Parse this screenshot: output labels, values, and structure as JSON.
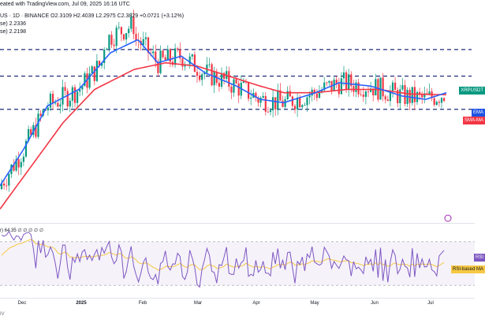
{
  "header": {
    "line1": "eated with TradingView.com, Jul 09, 2025 16:16 UTC",
    "line2": "US · 1D · BINANCE  O2.3109 H2.4039 L2.2975 C2.3829 +0.0721 (+3.12%)",
    "line3": "se) 2.2336",
    "line4": "se) 2.2198"
  },
  "price_labels": [
    {
      "text": "XRPUSDT",
      "color": "#089981"
    },
    {
      "text": "EMA",
      "color": "#1e53e5"
    },
    {
      "text": "SMA-MA",
      "color": "#f23645"
    }
  ],
  "rsi_title": "r) 64.35 ∅ ∅ ∅ ∅ ∅",
  "rsi_labels": [
    {
      "text": "RSI",
      "color": "#7e57c2"
    },
    {
      "text": "RSI-based MA",
      "color": "#f7c843"
    }
  ],
  "xaxis": [
    "Dec",
    "2025",
    "Feb",
    "Mar",
    "Apr",
    "May",
    "Jun",
    "Jul"
  ],
  "footer": "IV",
  "colors": {
    "up": "#089981",
    "down": "#f23645",
    "ema": "#2962ff",
    "sma": "#f23645",
    "rsi": "#7e57c2",
    "rsi_ma": "#f7c843",
    "level": "#1e2c7a"
  },
  "chart_data": [
    {
      "type": "candlestick",
      "title": "",
      "series": [
        {
          "name": "EMA",
          "approx_path": [
            [
              0,
              0.9
            ],
            [
              30,
              1.45
            ],
            [
              60,
              2.1
            ],
            [
              100,
              2.35
            ],
            [
              140,
              2.9
            ],
            [
              175,
              3.1
            ],
            [
              200,
              2.75
            ],
            [
              230,
              2.85
            ],
            [
              260,
              2.6
            ],
            [
              300,
              2.4
            ],
            [
              330,
              2.2
            ],
            [
              360,
              2.15
            ],
            [
              400,
              2.3
            ],
            [
              430,
              2.45
            ],
            [
              470,
              2.4
            ],
            [
              510,
              2.25
            ],
            [
              540,
              2.2
            ],
            [
              566,
              2.3
            ]
          ]
        },
        {
          "name": "SMA",
          "approx_path": [
            [
              0,
              0.55
            ],
            [
              40,
              1.2
            ],
            [
              80,
              1.85
            ],
            [
              120,
              2.35
            ],
            [
              170,
              2.65
            ],
            [
              210,
              2.75
            ],
            [
              250,
              2.7
            ],
            [
              290,
              2.55
            ],
            [
              330,
              2.4
            ],
            [
              360,
              2.3
            ],
            [
              400,
              2.3
            ],
            [
              440,
              2.35
            ],
            [
              480,
              2.35
            ],
            [
              520,
              2.28
            ],
            [
              566,
              2.27
            ]
          ]
        }
      ],
      "levels": [
        2.95,
        2.55,
        2.05
      ],
      "ylim": [
        0.4,
        3.6
      ],
      "x_ticks": [
        "Dec",
        "2025",
        "Feb",
        "Mar",
        "Apr",
        "May",
        "Jun",
        "Jul"
      ]
    },
    {
      "type": "line",
      "title": "RSI",
      "ylim": [
        20,
        85
      ],
      "levels": [
        70,
        30
      ],
      "series": [
        {
          "name": "RSI",
          "last": 64.35
        },
        {
          "name": "RSI-based MA"
        }
      ]
    }
  ]
}
